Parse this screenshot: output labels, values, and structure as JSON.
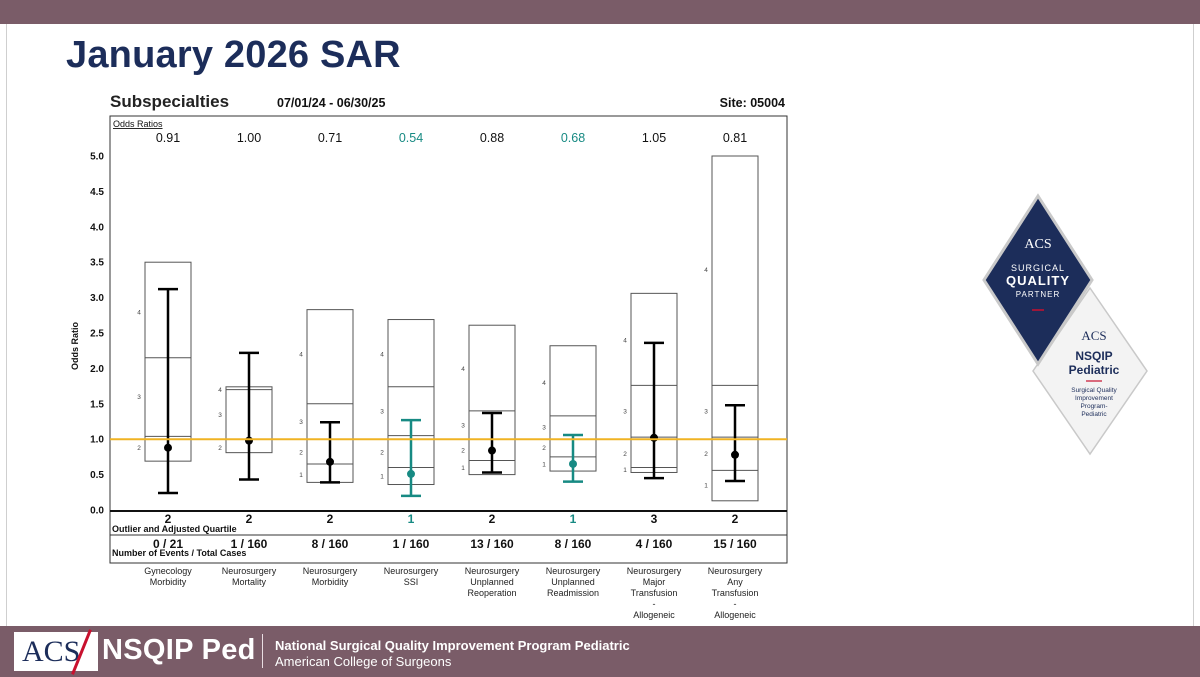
{
  "slide": {
    "title": "January 2026 SAR"
  },
  "chart_data": {
    "type": "error-bar-boxplot",
    "title": "Subspecialties",
    "date_range": "07/01/24 - 06/30/25",
    "site": "Site: 05004",
    "odds_label": "Odds Ratios",
    "ylabel": "Odds Ratio",
    "ylim": [
      0,
      5.0
    ],
    "yticks": [
      "0.0",
      "0.5",
      "1.0",
      "1.5",
      "2.0",
      "2.5",
      "3.0",
      "3.5",
      "4.0",
      "4.5",
      "5.0"
    ],
    "reference_line": 1.0,
    "quartile_label": "Outlier and Adjusted Quartile",
    "events_label": "Number of Events / Total Cases",
    "colors": {
      "normal": "#000000",
      "highlight": "#178a83",
      "reference": "#f0b323",
      "box": "#555555"
    },
    "categories": [
      {
        "name": [
          "Gynecology",
          "Morbidity"
        ],
        "or": "0.91",
        "point": 0.88,
        "ci": [
          0.24,
          3.12
        ],
        "box": [
          0.69,
          3.5
        ],
        "mid": [
          1.04,
          2.15
        ],
        "qlabels": [
          "2",
          "3",
          "4"
        ],
        "qpos": [
          0.88,
          1.6,
          2.8
        ],
        "quartile": "2",
        "events": "0 / 21",
        "highlight": false
      },
      {
        "name": [
          "Neurosurgery",
          "Mortality"
        ],
        "or": "1.00",
        "point": 0.98,
        "ci": [
          0.43,
          2.22
        ],
        "box": [
          0.81,
          1.74
        ],
        "mid": [
          1.7
        ],
        "qlabels": [
          "2",
          "3",
          "4"
        ],
        "qpos": [
          0.88,
          1.35,
          1.7
        ],
        "quartile": "2",
        "events": "1 / 160",
        "highlight": false
      },
      {
        "name": [
          "Neurosurgery",
          "Morbidity"
        ],
        "or": "0.71",
        "point": 0.68,
        "ci": [
          0.39,
          1.24
        ],
        "box": [
          0.39,
          2.83
        ],
        "mid": [
          0.65,
          1.0,
          1.5
        ],
        "qlabels": [
          "1",
          "2",
          "3",
          "4"
        ],
        "qpos": [
          0.5,
          0.82,
          1.25,
          2.2
        ],
        "quartile": "2",
        "events": "8 / 160",
        "highlight": false
      },
      {
        "name": [
          "Neurosurgery",
          "SSI"
        ],
        "or": "0.54",
        "point": 0.51,
        "ci": [
          0.2,
          1.27
        ],
        "box": [
          0.36,
          2.69
        ],
        "mid": [
          0.6,
          1.05,
          1.74
        ],
        "qlabels": [
          "1",
          "2",
          "3",
          "4"
        ],
        "qpos": [
          0.48,
          0.82,
          1.4,
          2.2
        ],
        "quartile": "1",
        "events": "1 / 160",
        "highlight": true
      },
      {
        "name": [
          "Neurosurgery",
          "Unplanned",
          "Reoperation"
        ],
        "or": "0.88",
        "point": 0.84,
        "ci": [
          0.53,
          1.37
        ],
        "box": [
          0.5,
          2.61
        ],
        "mid": [
          0.7,
          1.0,
          1.4
        ],
        "qlabels": [
          "1",
          "2",
          "3",
          "4"
        ],
        "qpos": [
          0.6,
          0.85,
          1.2,
          2.0
        ],
        "quartile": "2",
        "events": "13 / 160",
        "highlight": false
      },
      {
        "name": [
          "Neurosurgery",
          "Unplanned",
          "Readmission"
        ],
        "or": "0.68",
        "point": 0.65,
        "ci": [
          0.4,
          1.06
        ],
        "box": [
          0.55,
          2.32
        ],
        "mid": [
          0.75,
          1.0,
          1.33
        ],
        "qlabels": [
          "1",
          "2",
          "3",
          "4"
        ],
        "qpos": [
          0.65,
          0.88,
          1.17,
          1.8
        ],
        "quartile": "1",
        "events": "8 / 160",
        "highlight": true
      },
      {
        "name": [
          "Neurosurgery",
          "Major",
          "Transfusion",
          "-",
          "Allogeneic"
        ],
        "or": "1.05",
        "point": 1.02,
        "ci": [
          0.45,
          2.36
        ],
        "box": [
          0.53,
          3.06
        ],
        "mid": [
          0.6,
          1.03,
          1.76
        ],
        "qlabels": [
          "1",
          "2",
          "3",
          "4"
        ],
        "qpos": [
          0.57,
          0.8,
          1.4,
          2.4
        ],
        "quartile": "3",
        "events": "4 / 160",
        "highlight": false
      },
      {
        "name": [
          "Neurosurgery",
          "Any",
          "Transfusion",
          "-",
          "Allogeneic"
        ],
        "or": "0.81",
        "point": 0.78,
        "ci": [
          0.41,
          1.48
        ],
        "box": [
          0.13,
          5.0
        ],
        "mid": [
          0.56,
          1.03,
          1.76
        ],
        "qlabels": [
          "1",
          "2",
          "3",
          "4"
        ],
        "qpos": [
          0.35,
          0.8,
          1.4,
          3.4
        ],
        "quartile": "2",
        "events": "15 / 160",
        "highlight": false
      }
    ]
  },
  "badges": {
    "sqp": {
      "acs": "ACS",
      "line1": "SURGICAL",
      "line2": "QUALITY",
      "line3": "PARTNER"
    },
    "ped": {
      "acs": "ACS",
      "line1": "NSQIP",
      "line2": "Pediatric",
      "sub1": "Surgical Quality",
      "sub2": "Improvement",
      "sub3": "Program-",
      "sub4": "Pediatric"
    }
  },
  "footer": {
    "logo": "ACS",
    "program": "NSQIP Ped",
    "line1": "National Surgical Quality Improvement Program Pediatric",
    "line2": "American College of Surgeons"
  }
}
